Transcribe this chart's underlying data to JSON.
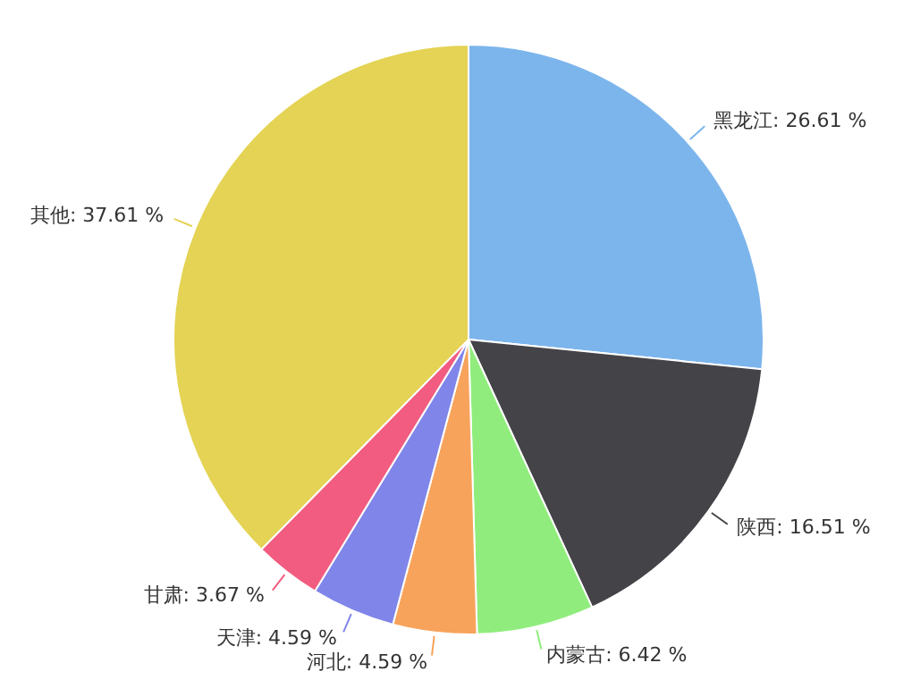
{
  "chart_data": {
    "type": "pie",
    "categories": [
      "黑龙江",
      "陕西",
      "内蒙古",
      "河北",
      "天津",
      "甘肃",
      "其他"
    ],
    "values": [
      26.61,
      16.51,
      6.42,
      4.59,
      4.59,
      3.67,
      37.61
    ],
    "value_labels": [
      "26.61 %",
      "16.51 %",
      "6.42 %",
      "4.59 %",
      "4.59 %",
      "3.67 %",
      "37.61 %"
    ],
    "colors": [
      "#7cb5ec",
      "#434348",
      "#90ed7d",
      "#f7a35c",
      "#8085e9",
      "#f15c80",
      "#e4d354"
    ]
  }
}
